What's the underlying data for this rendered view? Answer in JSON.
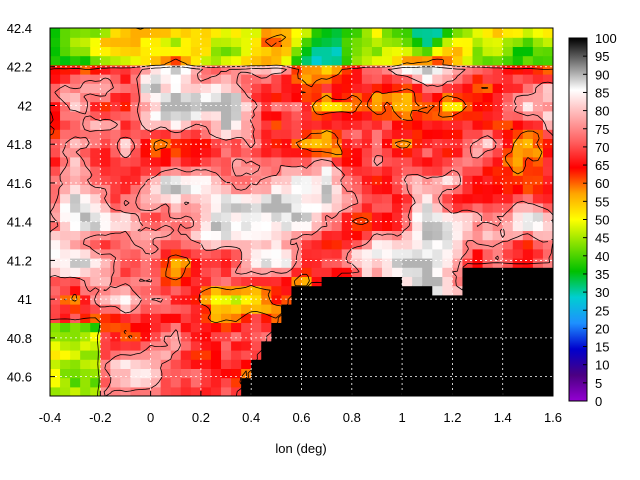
{
  "chart_data": {
    "type": "heatmap",
    "title": "",
    "xlabel": "lon (deg)",
    "ylabel": "",
    "xlim": [
      -0.4,
      1.6
    ],
    "ylim": [
      40.5,
      42.4
    ],
    "x_ticks": [
      "-0.4",
      "-0.2",
      "0",
      "0.2",
      "0.4",
      "0.6",
      "0.8",
      "1",
      "1.2",
      "1.4",
      "1.6"
    ],
    "y_ticks": [
      "40.6",
      "40.8",
      "41",
      "41.2",
      "41.4",
      "41.6",
      "41.8",
      "42",
      "42.2",
      "42.4"
    ],
    "grid": true,
    "colorbar": {
      "min": 0,
      "max": 100,
      "ticks": [
        "0",
        "5",
        "10",
        "15",
        "20",
        "25",
        "30",
        "35",
        "40",
        "45",
        "50",
        "55",
        "60",
        "65",
        "70",
        "75",
        "80",
        "85",
        "90",
        "95",
        "100"
      ],
      "colors": [
        "#9400d3",
        "#4b0082",
        "#0000cd",
        "#1e90ff",
        "#00ced1",
        "#00c000",
        "#7fe000",
        "#ffff00",
        "#ffa500",
        "#ff0000",
        "#ff6060",
        "#ffb0b0",
        "#ffffff",
        "#808080",
        "#000000"
      ]
    },
    "regions": {
      "sea_value": 100,
      "land_range": [
        40,
        90
      ],
      "land_dominant_value": 75
    }
  }
}
